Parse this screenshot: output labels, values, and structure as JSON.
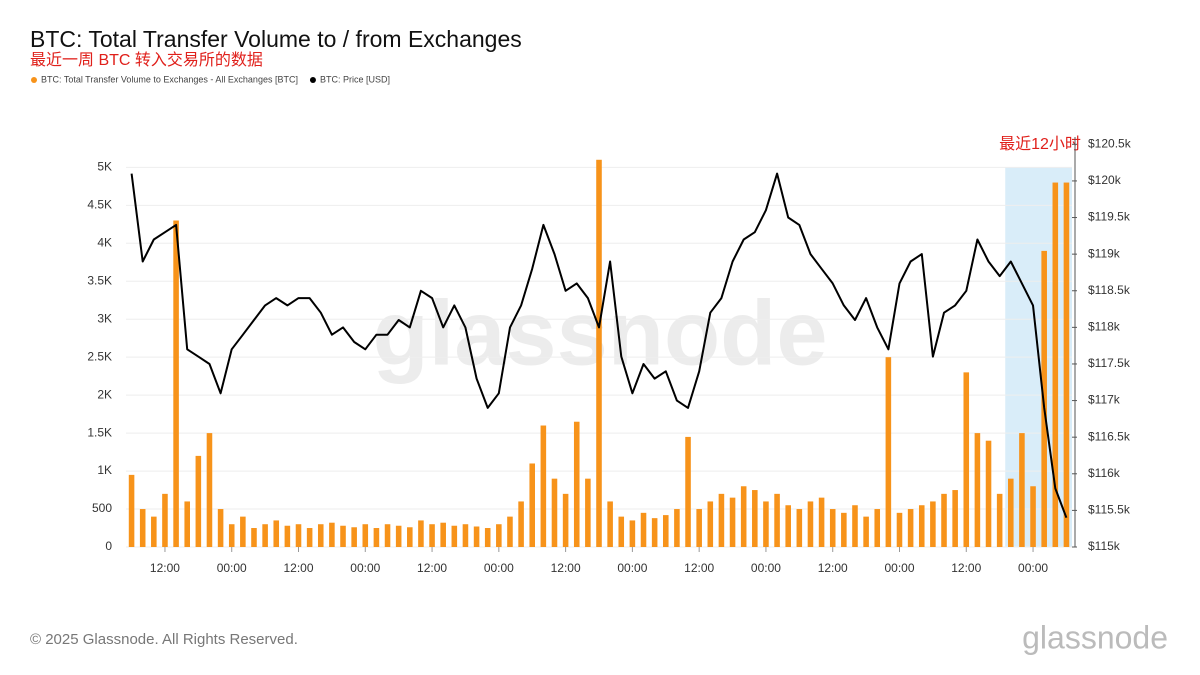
{
  "chart_data": {
    "type": "bar-line",
    "title": "BTC: Total Transfer Volume to / from Exchanges",
    "subtitle": "最近一周 BTC 转入交易所的数据",
    "annotation": "最近12小时",
    "categories": [
      null,
      null,
      null,
      "12:00",
      null,
      null,
      null,
      null,
      null,
      "00:00",
      null,
      null,
      null,
      null,
      null,
      "12:00",
      null,
      null,
      null,
      null,
      null,
      "00:00",
      null,
      null,
      null,
      null,
      null,
      "12:00",
      null,
      null,
      null,
      null,
      null,
      "00:00",
      null,
      null,
      null,
      null,
      null,
      "12:00",
      null,
      null,
      null,
      null,
      null,
      "00:00",
      null,
      null,
      null,
      null,
      null,
      "12:00",
      null,
      null,
      null,
      null,
      null,
      "00:00",
      null,
      null,
      null,
      null,
      null,
      "12:00",
      null,
      null,
      null,
      null,
      null,
      "00:00",
      null,
      null,
      null,
      null,
      null,
      "12:00",
      null,
      null,
      null,
      null,
      null,
      "00:00",
      null,
      null,
      null
    ],
    "series": [
      {
        "name": "BTC: Total Transfer Volume to Exchanges - All Exchanges [BTC]",
        "color": "#f7931a",
        "values": [
          950,
          500,
          400,
          700,
          4300,
          600,
          1200,
          1500,
          500,
          300,
          400,
          250,
          300,
          350,
          280,
          300,
          250,
          300,
          320,
          280,
          260,
          300,
          250,
          300,
          280,
          260,
          350,
          300,
          320,
          280,
          300,
          270,
          250,
          300,
          400,
          600,
          1100,
          1600,
          900,
          700,
          1650,
          900,
          5100,
          600,
          400,
          350,
          450,
          380,
          420,
          500,
          1450,
          500,
          600,
          700,
          650,
          800,
          750,
          600,
          700,
          550,
          500,
          600,
          650,
          500,
          450,
          550,
          400,
          500,
          2500,
          450,
          500,
          550,
          600,
          700,
          750,
          2300,
          1500,
          1400,
          700,
          900,
          1500,
          800,
          3900,
          4800,
          4800
        ]
      },
      {
        "name": "BTC: Price [USD]",
        "color": "#000000",
        "axis": "y2",
        "values": [
          120100,
          118900,
          119200,
          119300,
          119400,
          117700,
          117600,
          117500,
          117100,
          117700,
          117900,
          118100,
          118300,
          118400,
          118300,
          118400,
          118400,
          118200,
          117900,
          118000,
          117800,
          117700,
          117900,
          117900,
          118100,
          118000,
          118500,
          118400,
          118000,
          118300,
          118000,
          117300,
          116900,
          117100,
          118000,
          118300,
          118800,
          119400,
          119000,
          118500,
          118600,
          118400,
          118000,
          118900,
          117600,
          117100,
          117500,
          117300,
          117400,
          117000,
          116900,
          117400,
          118200,
          118400,
          118900,
          119200,
          119300,
          119600,
          120100,
          119500,
          119400,
          119000,
          118800,
          118600,
          118300,
          118100,
          118400,
          118000,
          117700,
          118600,
          118900,
          119000,
          117600,
          118200,
          118300,
          118500,
          119200,
          118900,
          118700,
          118900,
          118600,
          118300,
          116900,
          115800,
          115400
        ]
      }
    ],
    "ylim": [
      0,
      5400
    ],
    "yticks": [
      0,
      500,
      {
        "value": 1000,
        "label": "1K"
      },
      {
        "value": 1500,
        "label": "1.5K"
      },
      {
        "value": 2000,
        "label": "2K"
      },
      {
        "value": 2500,
        "label": "2.5K"
      },
      {
        "value": 3000,
        "label": "3K"
      },
      {
        "value": 3500,
        "label": "3.5K"
      },
      {
        "value": 4000,
        "label": "4K"
      },
      {
        "value": 4500,
        "label": "4.5K"
      },
      {
        "value": 5000,
        "label": "5K"
      }
    ],
    "y2lim": [
      115000,
      120600
    ],
    "y2ticks": [
      {
        "value": 115000,
        "label": "$115k"
      },
      {
        "value": 115500,
        "label": "$115.5k"
      },
      {
        "value": 116000,
        "label": "$116k"
      },
      {
        "value": 116500,
        "label": "$116.5k"
      },
      {
        "value": 117000,
        "label": "$117k"
      },
      {
        "value": 117500,
        "label": "$117.5k"
      },
      {
        "value": 118000,
        "label": "$118k"
      },
      {
        "value": 118500,
        "label": "$118.5k"
      },
      {
        "value": 119000,
        "label": "$119k"
      },
      {
        "value": 119500,
        "label": "$119.5k"
      },
      {
        "value": 120000,
        "label": "$120k"
      },
      {
        "value": 120500,
        "label": "$120.5k"
      }
    ],
    "grid": true
  },
  "watermark": "glassnode",
  "footer": "© 2025 Glassnode. All Rights Reserved.",
  "logo": "glassnode"
}
